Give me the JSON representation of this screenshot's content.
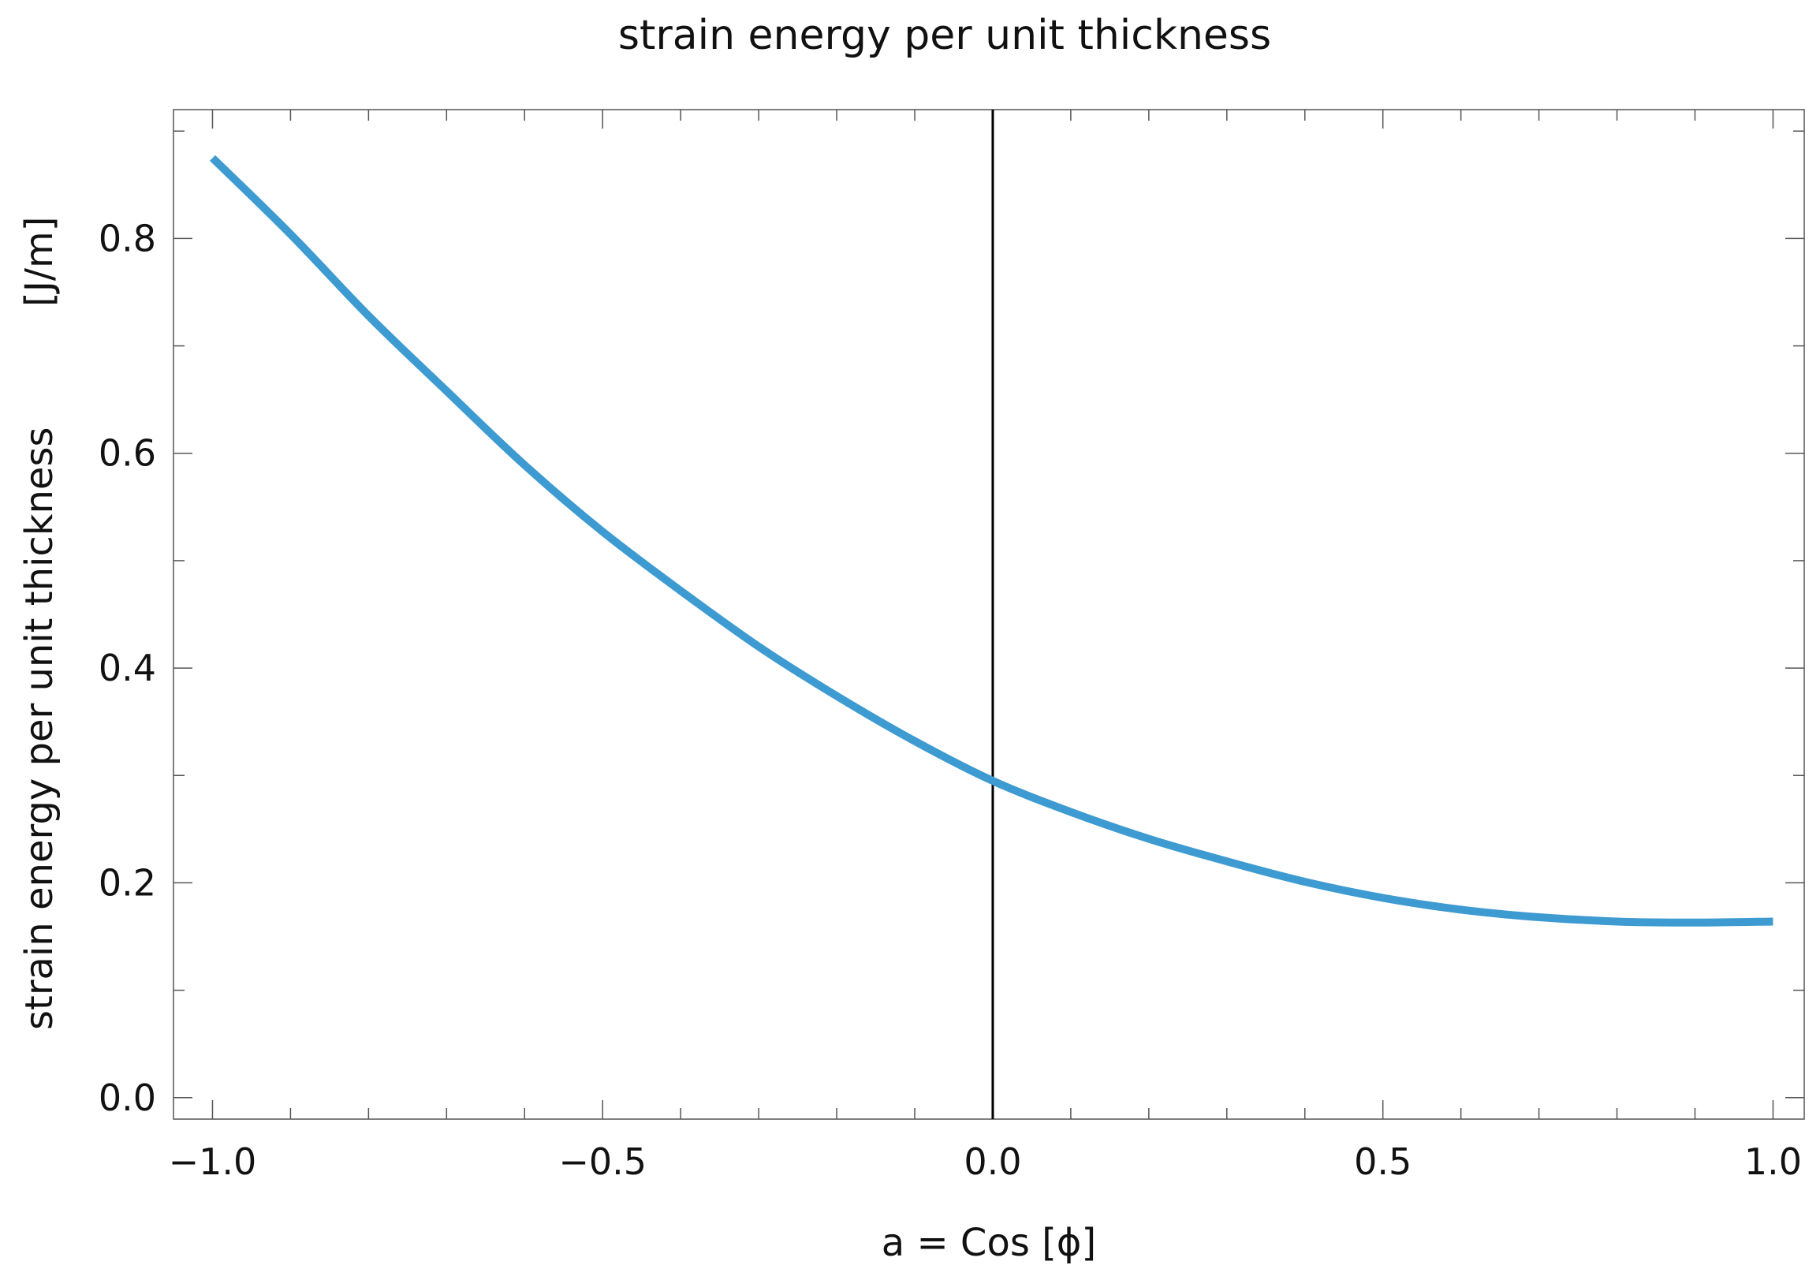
{
  "chart_data": {
    "type": "line",
    "title": "strain energy per unit thickness",
    "xlabel": "a = Cos [ϕ]",
    "ylabel": "strain energy per unit thickness",
    "ylabel_units": "[J/m]",
    "xlim": [
      -1.05,
      1.04
    ],
    "ylim": [
      -0.02,
      0.92
    ],
    "x_ticks": [
      -1.0,
      -0.5,
      0.0,
      0.5,
      1.0
    ],
    "x_tick_labels": [
      "−1.0",
      "−0.5",
      "0.0",
      "0.5",
      "1.0"
    ],
    "x_minor_step": 0.1,
    "y_ticks": [
      0.0,
      0.2,
      0.4,
      0.6,
      0.8
    ],
    "y_tick_labels": [
      "0.0",
      "0.2",
      "0.4",
      "0.6",
      "0.8"
    ],
    "y_minor_step": 0.1,
    "reference_line_x": 0.0,
    "grid": false,
    "series": [
      {
        "name": "strain energy",
        "color": "#3d9bd1",
        "x": [
          -1.0,
          -0.9,
          -0.8,
          -0.7,
          -0.6,
          -0.5,
          -0.4,
          -0.3,
          -0.2,
          -0.1,
          0.0,
          0.1,
          0.2,
          0.3,
          0.4,
          0.5,
          0.6,
          0.7,
          0.8,
          0.9,
          1.0
        ],
        "y": [
          0.875,
          0.804,
          0.728,
          0.658,
          0.589,
          0.527,
          0.472,
          0.42,
          0.374,
          0.332,
          0.295,
          0.266,
          0.241,
          0.22,
          0.201,
          0.186,
          0.175,
          0.168,
          0.164,
          0.163,
          0.164
        ]
      }
    ]
  }
}
